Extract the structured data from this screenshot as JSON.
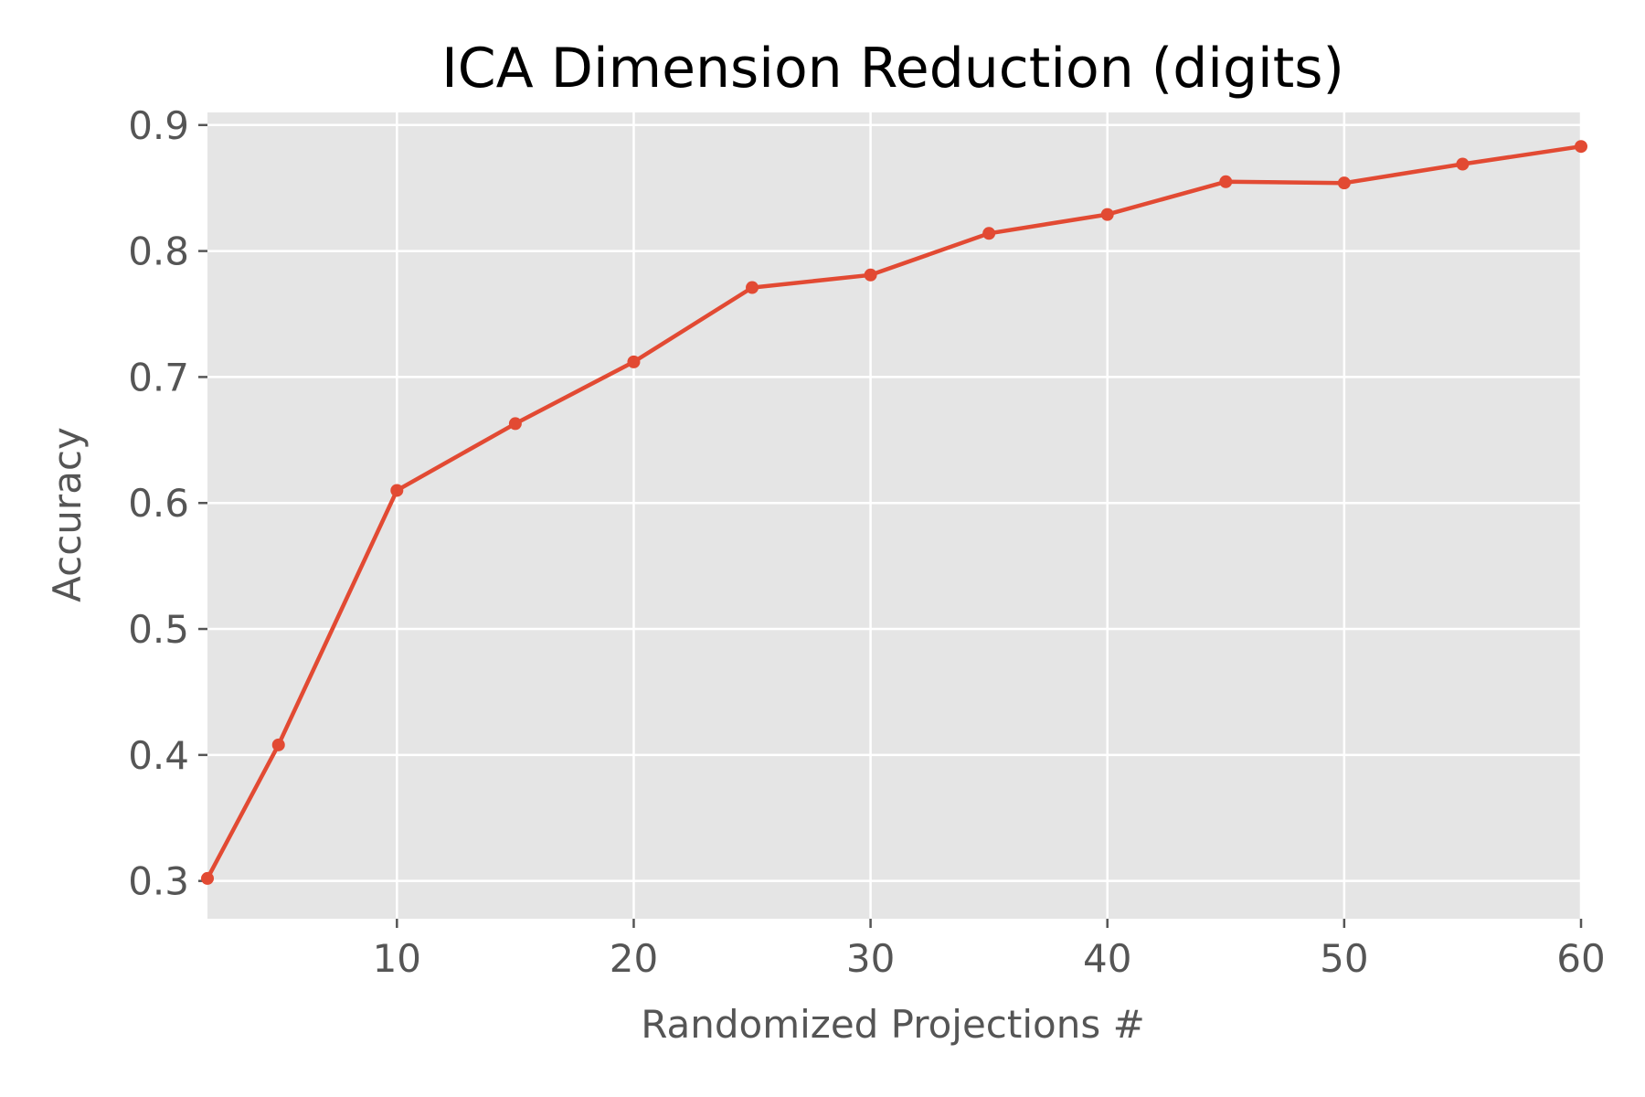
{
  "chart_data": {
    "type": "line",
    "title": "ICA Dimension Reduction (digits)",
    "xlabel": "Randomized Projections #",
    "ylabel": "Accuracy",
    "xlim": [
      2,
      60
    ],
    "ylim": [
      0.27,
      0.91
    ],
    "xticks": [
      10,
      20,
      30,
      40,
      50,
      60
    ],
    "yticks": [
      0.3,
      0.4,
      0.5,
      0.6,
      0.7,
      0.8,
      0.9
    ],
    "grid": true,
    "series": [
      {
        "color": "#E24A33",
        "x": [
          2,
          5,
          10,
          15,
          20,
          25,
          30,
          35,
          40,
          45,
          50,
          55,
          60
        ],
        "y": [
          0.302,
          0.408,
          0.61,
          0.663,
          0.712,
          0.771,
          0.781,
          0.814,
          0.829,
          0.855,
          0.854,
          0.869,
          0.883
        ]
      }
    ]
  },
  "style": {
    "plot_background": "#E5E5E5",
    "grid_color": "#FFFFFF",
    "text_color": "#555555",
    "title_color": "#000000"
  }
}
